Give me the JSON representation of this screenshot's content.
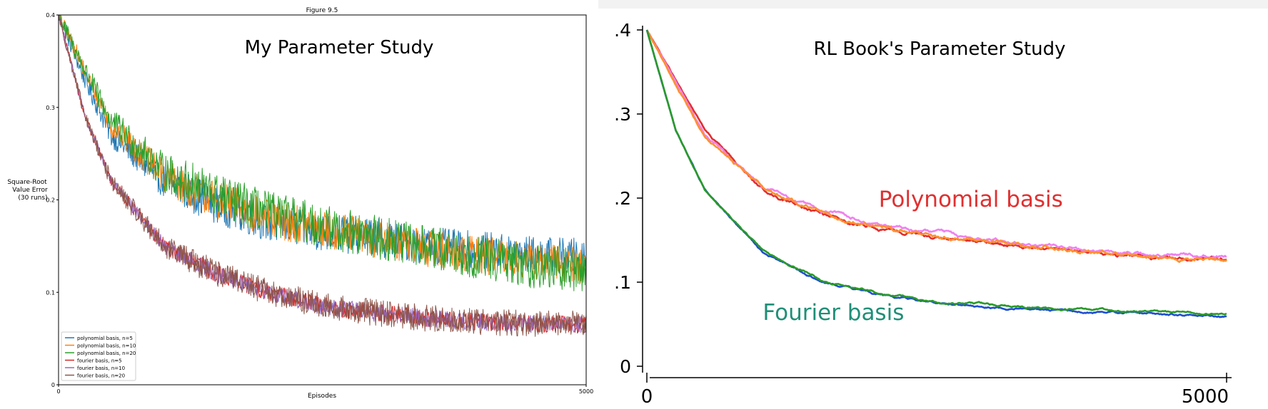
{
  "chart_data": [
    {
      "type": "line",
      "figure_label": "Figure 9.5",
      "title": "My Parameter Study",
      "xlabel": "Episodes",
      "ylabel": [
        "Square-Root",
        "Value Error",
        "(30 runs)"
      ],
      "xlim": [
        0,
        5000
      ],
      "ylim": [
        0,
        0.4
      ],
      "x_ticks": [
        "0",
        "5000"
      ],
      "y_ticks": [
        {
          "value": 0,
          "label": "0"
        },
        {
          "value": 0.1,
          "label": "0.1"
        },
        {
          "value": 0.2,
          "label": "0.2"
        },
        {
          "value": 0.3,
          "label": "0.3"
        },
        {
          "value": 0.4,
          "label": "0.4"
        }
      ],
      "grid": false,
      "legend_position": "bottom-left",
      "x": [
        0,
        250,
        500,
        1000,
        1500,
        2000,
        2500,
        3000,
        3500,
        4000,
        4500,
        5000
      ],
      "series": [
        {
          "name": "polynomial basis, n=5",
          "color": "#1f77b4",
          "noise": 0.013,
          "values": [
            0.4,
            0.33,
            0.27,
            0.22,
            0.195,
            0.175,
            0.165,
            0.16,
            0.15,
            0.145,
            0.14,
            0.138
          ]
        },
        {
          "name": "polynomial basis, n=10",
          "color": "#ff7f0e",
          "noise": 0.013,
          "values": [
            0.4,
            0.34,
            0.28,
            0.225,
            0.2,
            0.18,
            0.168,
            0.158,
            0.148,
            0.14,
            0.133,
            0.13
          ]
        },
        {
          "name": "polynomial basis, n=20",
          "color": "#2ca02c",
          "noise": 0.015,
          "values": [
            0.4,
            0.34,
            0.285,
            0.23,
            0.205,
            0.185,
            0.172,
            0.16,
            0.148,
            0.138,
            0.128,
            0.123
          ]
        },
        {
          "name": "fourier basis, n=5",
          "color": "#d62728",
          "noise": 0.006,
          "values": [
            0.4,
            0.29,
            0.22,
            0.15,
            0.12,
            0.1,
            0.085,
            0.078,
            0.072,
            0.068,
            0.066,
            0.065
          ]
        },
        {
          "name": "fourier basis, n=10",
          "color": "#9467bd",
          "noise": 0.006,
          "values": [
            0.4,
            0.29,
            0.22,
            0.15,
            0.12,
            0.1,
            0.085,
            0.078,
            0.072,
            0.068,
            0.066,
            0.065
          ]
        },
        {
          "name": "fourier basis, n=20",
          "color": "#8c564b",
          "noise": 0.009,
          "values": [
            0.4,
            0.29,
            0.22,
            0.15,
            0.12,
            0.1,
            0.085,
            0.078,
            0.072,
            0.068,
            0.066,
            0.066
          ]
        }
      ]
    },
    {
      "type": "line",
      "title": "RL Book's Parameter Study",
      "xlim": [
        0,
        5000
      ],
      "ylim": [
        0,
        0.4
      ],
      "x_ticks": [
        "0",
        "5000"
      ],
      "y_ticks": [
        {
          "value": 0,
          "label": "0"
        },
        {
          "value": 0.1,
          "label": ".1"
        },
        {
          "value": 0.2,
          "label": ".2"
        },
        {
          "value": 0.3,
          "label": ".3"
        },
        {
          "value": 0.4,
          "label": ".4"
        }
      ],
      "grid": false,
      "annotations": [
        {
          "text": "Polynomial basis",
          "color": "#e03030",
          "x": 2000,
          "y": 0.19
        },
        {
          "text": "Fourier basis",
          "color": "#1f8f77",
          "x": 1000,
          "y": 0.055
        }
      ],
      "x": [
        0,
        250,
        500,
        1000,
        1500,
        2000,
        2500,
        3000,
        3500,
        4000,
        4500,
        5000
      ],
      "series": [
        {
          "color": "#e03030",
          "noise": 0.005,
          "values": [
            0.4,
            0.34,
            0.28,
            0.21,
            0.18,
            0.162,
            0.152,
            0.145,
            0.138,
            0.132,
            0.13,
            0.128
          ]
        },
        {
          "color": "#ee82ee",
          "noise": 0.005,
          "values": [
            0.4,
            0.338,
            0.275,
            0.214,
            0.185,
            0.168,
            0.158,
            0.15,
            0.142,
            0.135,
            0.132,
            0.13
          ]
        },
        {
          "color": "#ff9030",
          "noise": 0.006,
          "values": [
            0.4,
            0.336,
            0.272,
            0.212,
            0.183,
            0.166,
            0.156,
            0.148,
            0.14,
            0.133,
            0.129,
            0.126
          ]
        },
        {
          "color": "#1f4fd0",
          "noise": 0.003,
          "values": [
            0.4,
            0.28,
            0.21,
            0.135,
            0.1,
            0.085,
            0.075,
            0.07,
            0.066,
            0.064,
            0.062,
            0.06
          ]
        },
        {
          "color": "#2a9a2a",
          "noise": 0.003,
          "values": [
            0.4,
            0.28,
            0.21,
            0.137,
            0.102,
            0.087,
            0.077,
            0.072,
            0.068,
            0.066,
            0.064,
            0.062
          ]
        }
      ]
    }
  ]
}
